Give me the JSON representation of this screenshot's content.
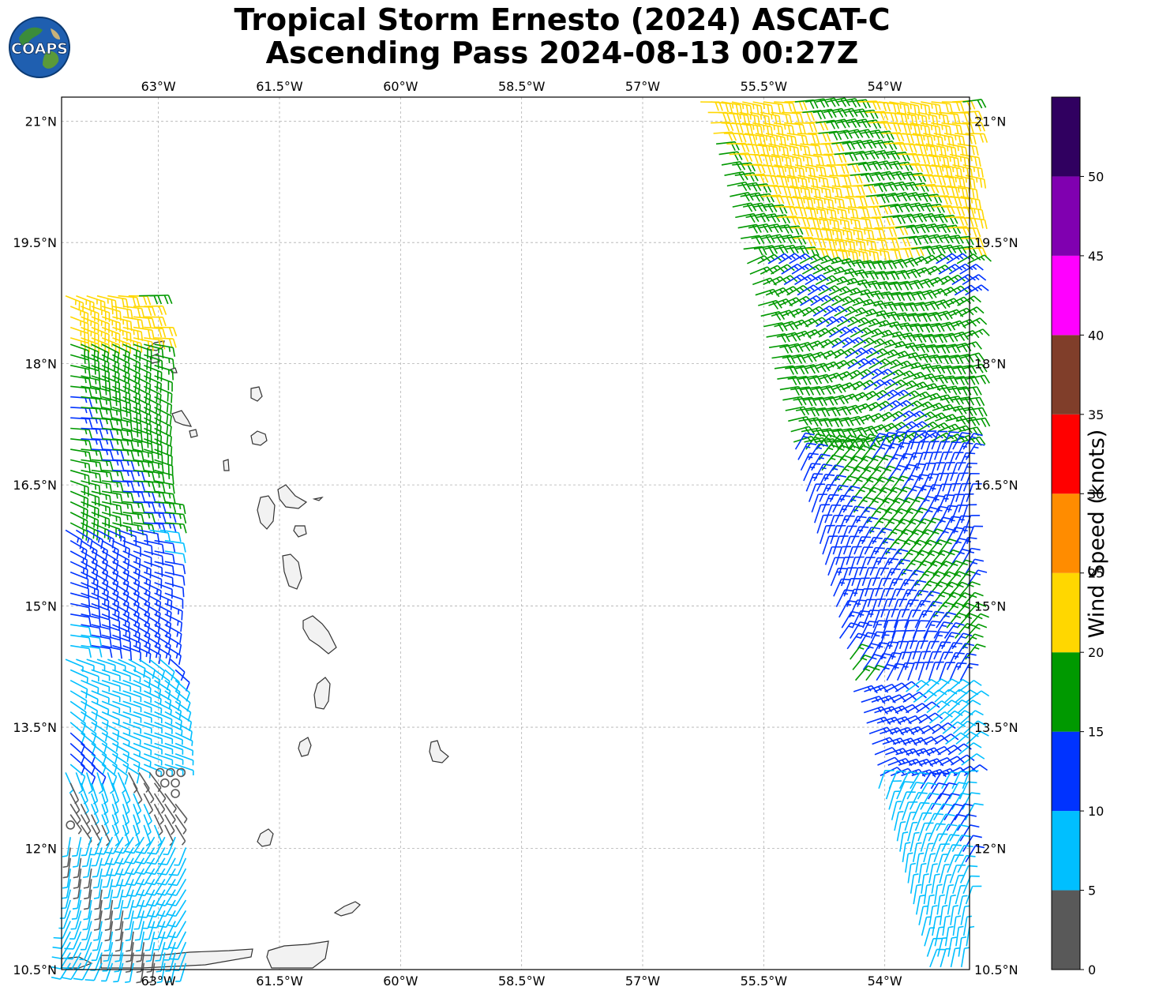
{
  "title": {
    "line1": "Tropical Storm Ernesto (2024) ASCAT-C",
    "line2": "Ascending Pass 2024-08-13 00:27Z"
  },
  "logo": {
    "text": "COAPS",
    "icon": "globe-icon"
  },
  "chart_data": {
    "type": "map-wind-barbs",
    "lon_range": [
      -64.2,
      -52.95
    ],
    "lat_range": [
      10.5,
      21.3
    ],
    "lon_ticks": [
      -63,
      -61.5,
      -60,
      -58.5,
      -57,
      -55.5,
      -54
    ],
    "lon_tick_labels": [
      "63°W",
      "61.5°W",
      "60°W",
      "58.5°W",
      "57°W",
      "55.5°W",
      "54°W"
    ],
    "lat_ticks": [
      21,
      19.5,
      18,
      16.5,
      15,
      13.5,
      12,
      10.5
    ],
    "lat_tick_labels": [
      "21°N",
      "19.5°N",
      "18°N",
      "16.5°N",
      "15°N",
      "13.5°N",
      "12°N",
      "10.5°N"
    ],
    "grid": true,
    "colorbar": {
      "label": "Wind Speed (knots)",
      "bins": [
        {
          "min": 0,
          "max": 5,
          "color": "#595959"
        },
        {
          "min": 5,
          "max": 10,
          "color": "#00bfff"
        },
        {
          "min": 10,
          "max": 15,
          "color": "#0033ff"
        },
        {
          "min": 15,
          "max": 20,
          "color": "#009900"
        },
        {
          "min": 20,
          "max": 25,
          "color": "#ffd700"
        },
        {
          "min": 25,
          "max": 30,
          "color": "#ff8c00"
        },
        {
          "min": 30,
          "max": 35,
          "color": "#ff0000"
        },
        {
          "min": 35,
          "max": 40,
          "color": "#803e2a"
        },
        {
          "min": 40,
          "max": 45,
          "color": "#ff00ff"
        },
        {
          "min": 45,
          "max": 50,
          "color": "#8000b0"
        },
        {
          "min": 50,
          "max": 55,
          "color": "#300060"
        }
      ],
      "tick_values": [
        0,
        5,
        10,
        15,
        20,
        25,
        30,
        35,
        40,
        45,
        50
      ],
      "tick_labels": [
        "0",
        "5",
        "10",
        "15",
        "20",
        "25",
        "30",
        "35",
        "40",
        "45",
        "50"
      ]
    },
    "swaths": [
      {
        "name": "west",
        "lat_bands": [
          {
            "lat_min": 18.3,
            "lat_max": 18.9,
            "speed_kt": 22,
            "dir_deg": 100
          },
          {
            "lat_min": 16.0,
            "lat_max": 18.3,
            "speed_kt": 17,
            "dir_deg": 105
          },
          {
            "lat_min": 14.4,
            "lat_max": 16.0,
            "speed_kt": 12,
            "dir_deg": 110
          },
          {
            "lat_min": 13.0,
            "lat_max": 14.4,
            "speed_kt": 8,
            "dir_deg": 120
          },
          {
            "lat_min": 12.2,
            "lat_max": 13.0,
            "speed_kt": 4,
            "dir_deg": 150
          },
          {
            "lat_min": 10.5,
            "lat_max": 12.2,
            "speed_kt": 7,
            "dir_deg": 200
          }
        ]
      },
      {
        "name": "east",
        "lat_bands": [
          {
            "lat_min": 19.3,
            "lat_max": 21.3,
            "speed_kt": 21,
            "dir_deg": 90
          },
          {
            "lat_min": 17.0,
            "lat_max": 19.3,
            "speed_kt": 17,
            "dir_deg": 70
          },
          {
            "lat_min": 14.0,
            "lat_max": 17.0,
            "speed_kt": 14,
            "dir_deg": 30
          },
          {
            "lat_min": 12.8,
            "lat_max": 14.0,
            "speed_kt": 11,
            "dir_deg": 60
          },
          {
            "lat_min": 10.5,
            "lat_max": 12.8,
            "speed_kt": 8,
            "dir_deg": 20
          }
        ]
      }
    ]
  }
}
